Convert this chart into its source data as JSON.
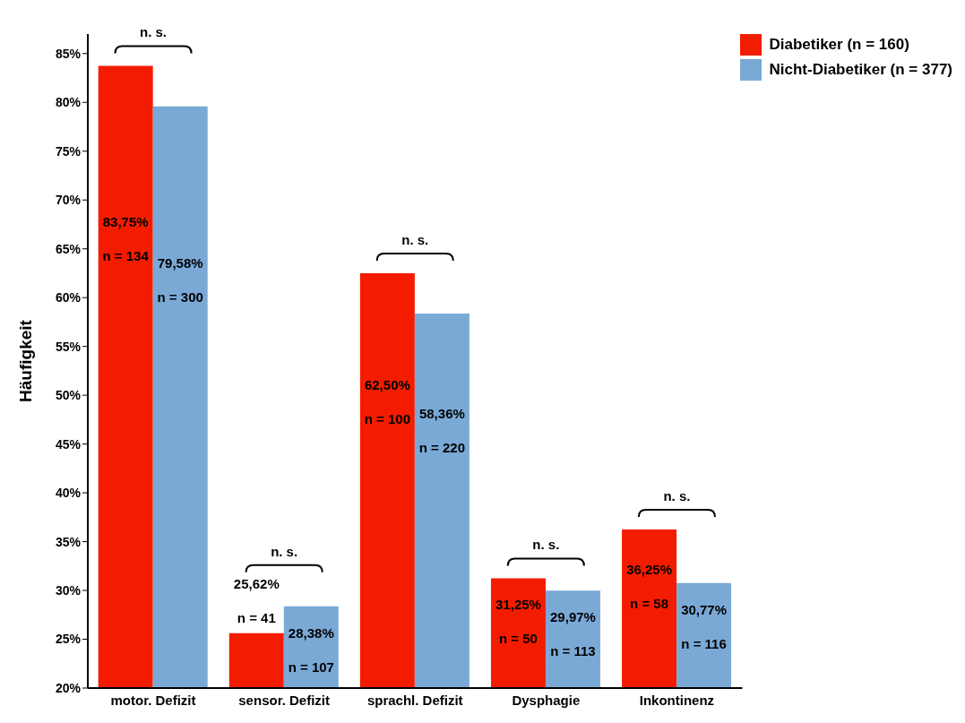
{
  "chart_data": {
    "type": "bar",
    "ylabel": "Häufigkeit",
    "categories": [
      "motor. Defizit",
      "sensor. Defizit",
      "sprachl. Defizit",
      "Dysphagie",
      "Inkontinenz"
    ],
    "series": [
      {
        "name": "Diabetiker (n = 160)",
        "color": "#f41c00",
        "values": [
          83.75,
          25.62,
          62.5,
          31.25,
          36.25
        ],
        "value_labels": [
          "83,75%\nn = 134",
          "25,62%\nn = 41",
          "62,50%\nn = 100",
          "31,25%\nn = 50",
          "36,25%\nn = 58"
        ]
      },
      {
        "name": "Nicht-Diabetiker (n = 377)",
        "color": "#7aa9d6",
        "values": [
          79.58,
          28.38,
          58.36,
          29.97,
          30.77
        ],
        "value_labels": [
          "79,58%\nn = 300",
          "28,38%\nn = 107",
          "58,36%\nn = 220",
          "29,97%\nn = 113",
          "30,77%\nn = 116"
        ]
      }
    ],
    "ylim": [
      20,
      87
    ],
    "yticks": [
      {
        "value": 20,
        "label": "20%"
      },
      {
        "value": 25,
        "label": "25%"
      },
      {
        "value": 30,
        "label": "30%"
      },
      {
        "value": 35,
        "label": "35%"
      },
      {
        "value": 40,
        "label": "40%"
      },
      {
        "value": 45,
        "label": "45%"
      },
      {
        "value": 50,
        "label": "50%"
      },
      {
        "value": 55,
        "label": "55%"
      },
      {
        "value": 60,
        "label": "60%"
      },
      {
        "value": 65,
        "label": "65%"
      },
      {
        "value": 70,
        "label": "70%"
      },
      {
        "value": 75,
        "label": "75%"
      },
      {
        "value": 80,
        "label": "80%"
      },
      {
        "value": 85,
        "label": "85%"
      }
    ],
    "grid": false,
    "legend": "top right",
    "annotations": [
      "n. s.",
      "n. s.",
      "n. s.",
      "n. s.",
      "n. s."
    ]
  }
}
